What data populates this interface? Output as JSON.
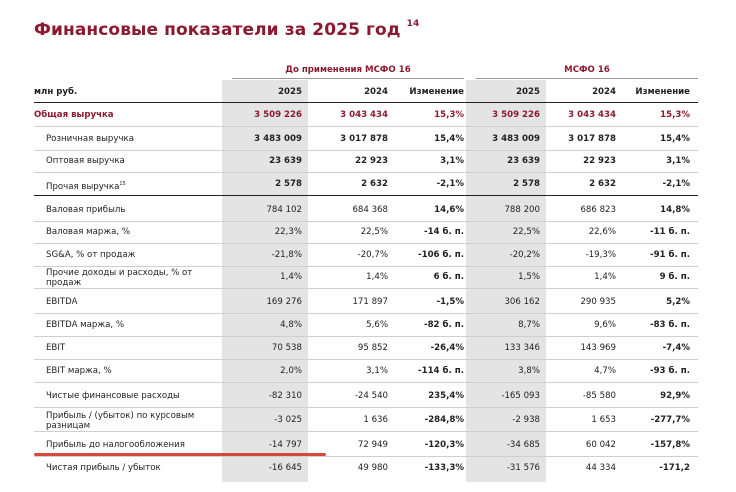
{
  "title": "Финансовые показатели за 2025 год",
  "title_sup": "14",
  "group_headers": [
    "До применения МСФО 16",
    "МСФО 16"
  ],
  "units": "млн руб.",
  "columns": [
    "2025",
    "2024",
    "Изменение",
    "2025",
    "2024",
    "Изменение"
  ],
  "rows": [
    {
      "label": "Общая выручка",
      "values": [
        "3 509 226",
        "3 043 434",
        "15,3%",
        "3 509 226",
        "3 043 434",
        "15,3%"
      ]
    },
    {
      "label": "Розничная выручка",
      "values": [
        "3 483 009",
        "3 017 878",
        "15,4%",
        "3 483 009",
        "3 017 878",
        "15,4%"
      ]
    },
    {
      "label": "Оптовая выручка",
      "values": [
        "23 639",
        "22 923",
        "3,1%",
        "23 639",
        "22 923",
        "3,1%"
      ]
    },
    {
      "label": "Прочая выручка",
      "label_sup": "15",
      "values": [
        "2 578",
        "2 632",
        "-2,1%",
        "2 578",
        "2 632",
        "-2,1%"
      ]
    },
    {
      "label": "Валовая прибыль",
      "values": [
        "784 102",
        "684 368",
        "14,6%",
        "788 200",
        "686 823",
        "14,8%"
      ]
    },
    {
      "label": "Валовая маржа, %",
      "values": [
        "22,3%",
        "22,5%",
        "-14 б. п.",
        "22,5%",
        "22,6%",
        "-11 б. п."
      ]
    },
    {
      "label": "SG&A, % от продаж",
      "values": [
        "-21,8%",
        "-20,7%",
        "-106 б. п.",
        "-20,2%",
        "-19,3%",
        "-91 б. п."
      ]
    },
    {
      "label": "Прочие доходы и расходы, % от продаж",
      "values": [
        "1,4%",
        "1,4%",
        "6 б. п.",
        "1,5%",
        "1,4%",
        "9 б. п."
      ]
    },
    {
      "label": "EBITDA",
      "values": [
        "169 276",
        "171 897",
        "-1,5%",
        "306 162",
        "290 935",
        "5,2%"
      ]
    },
    {
      "label": "EBITDA маржа, %",
      "values": [
        "4,8%",
        "5,6%",
        "-82 б. п.",
        "8,7%",
        "9,6%",
        "-83 б. п."
      ]
    },
    {
      "label": "EBIT",
      "values": [
        "70 538",
        "95 852",
        "-26,4%",
        "133 346",
        "143 969",
        "-7,4%"
      ]
    },
    {
      "label": "EBIT маржа, %",
      "values": [
        "2,0%",
        "3,1%",
        "-114 б. п.",
        "3,8%",
        "4,7%",
        "-93 б. п."
      ]
    },
    {
      "label": "Чистые финансовые расходы",
      "values": [
        "-82 310",
        "-24 540",
        "235,4%",
        "-165 093",
        "-85 580",
        "92,9%"
      ]
    },
    {
      "label": "Прибыль / (убыток) по курсовым разницам",
      "values": [
        "-3 025",
        "1 636",
        "-284,8%",
        "-2 938",
        "1 653",
        "-277,7%"
      ]
    },
    {
      "label": "Прибыль до налогообложения",
      "values": [
        "-14 797",
        "72 949",
        "-120,3%",
        "-34 685",
        "60 042",
        "-157,8%"
      ]
    },
    {
      "label": "Чистая прибыль / убыток",
      "values": [
        "-16 645",
        "49 980",
        "-133,3%",
        "-31 576",
        "44 334",
        "-171,2"
      ]
    }
  ],
  "colors": {
    "accent": "#8b1a2e",
    "shade": "#e4e4e4",
    "highlight": "#d6473c"
  }
}
